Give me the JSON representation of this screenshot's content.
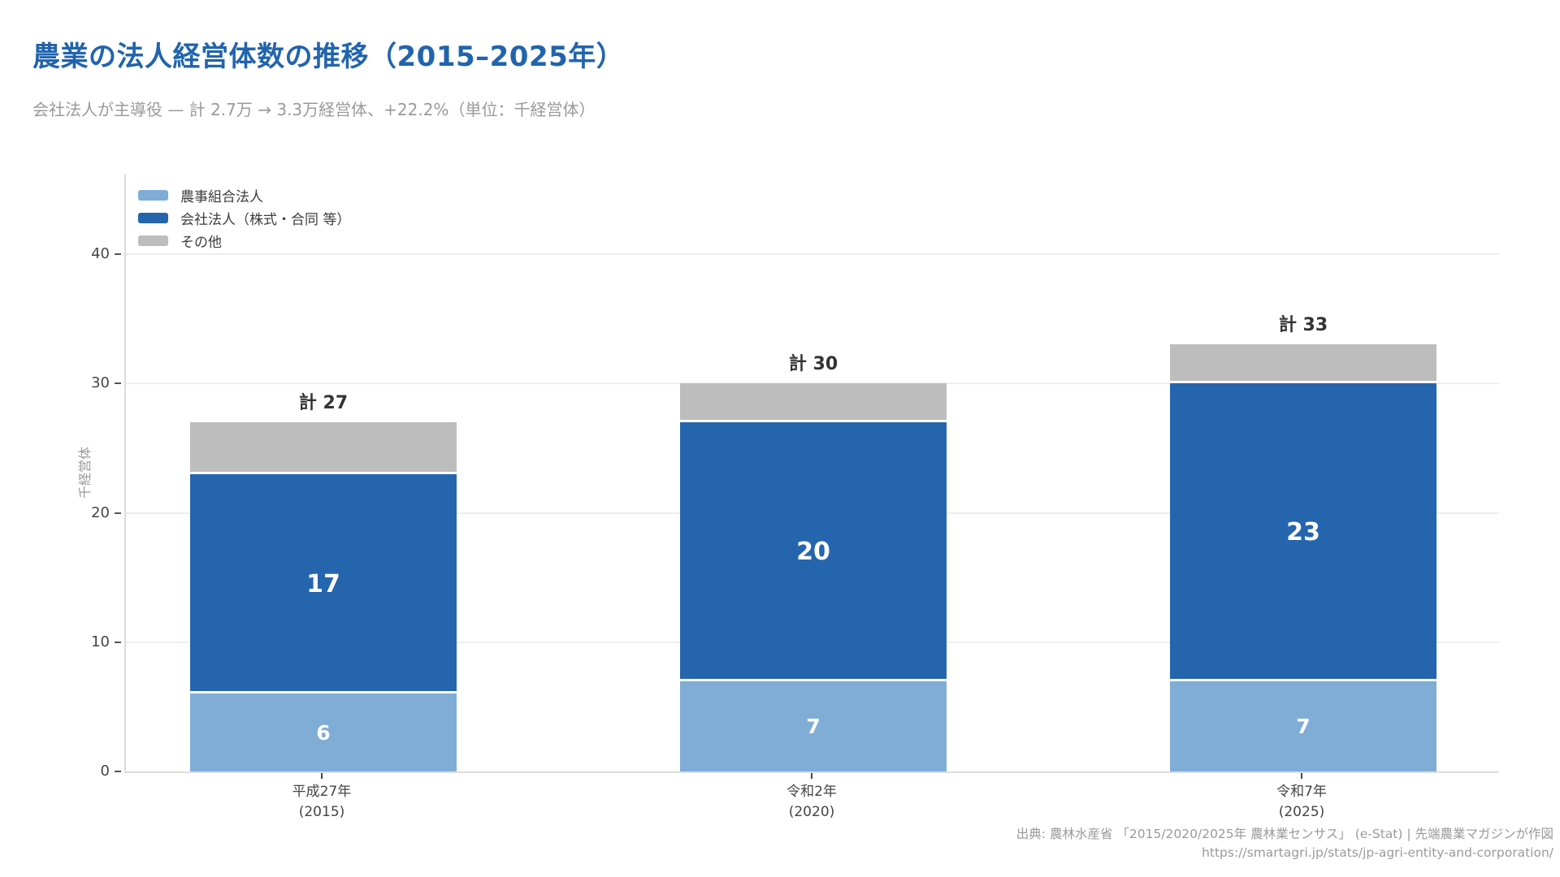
{
  "header": {
    "title": "農業の法人経営体数の推移（2015–2025年）",
    "subtitle": "会社法人が主導役 — 計 2.7万 → 3.3万経営体、+22.2%（単位：千経営体）"
  },
  "chart_data": {
    "type": "bar",
    "stacked": true,
    "title": "農業の法人経営体数の推移（2015–2025年）",
    "subtitle": "会社法人が主導役 — 計 2.7万 → 3.3万経営体、+22.2%（単位：千経営体）",
    "ylabel": "千経営体",
    "ylim": [
      0,
      46
    ],
    "yticks": [
      0,
      10,
      20,
      30,
      40
    ],
    "grid": true,
    "legend_position": "top-left",
    "categories": [
      {
        "era": "平成27年",
        "year": "(2015)"
      },
      {
        "era": "令和2年",
        "year": "(2020)"
      },
      {
        "era": "令和7年",
        "year": "(2025)"
      }
    ],
    "series": [
      {
        "name": "農事組合法人",
        "color": "#7fadd6",
        "values": [
          6,
          7,
          7
        ],
        "value_labels": [
          "6",
          "7",
          "7"
        ],
        "label_font": 25
      },
      {
        "name": "会社法人（株式・合同 等）",
        "color": "#2565ae",
        "values": [
          17,
          20,
          23
        ],
        "value_labels": [
          "17",
          "20",
          "23"
        ],
        "label_font": 30
      },
      {
        "name": "その他",
        "color": "#bdbdbd",
        "values": [
          4,
          3,
          3
        ],
        "value_labels": [
          "",
          "",
          ""
        ],
        "label_font": 25
      }
    ],
    "totals": [
      27,
      30,
      33
    ],
    "total_labels": [
      "計 27",
      "計 30",
      "計 33"
    ]
  },
  "footer": {
    "source_line1": "出典: 農林水産省 「2015/2020/2025年 農林業センサス」 (e-Stat) | 先端農業マガジンが作図",
    "source_line2": "https://smartagri.jp/stats/jp-agri-entity-and-corporation/"
  },
  "colors": {
    "title_blue": "#2164ad",
    "light_blue": "#7fadd6",
    "dark_blue": "#2565ae",
    "gray": "#bdbdbd",
    "gridline": "#eeeeee",
    "axis_line": "#dcdcdc"
  }
}
